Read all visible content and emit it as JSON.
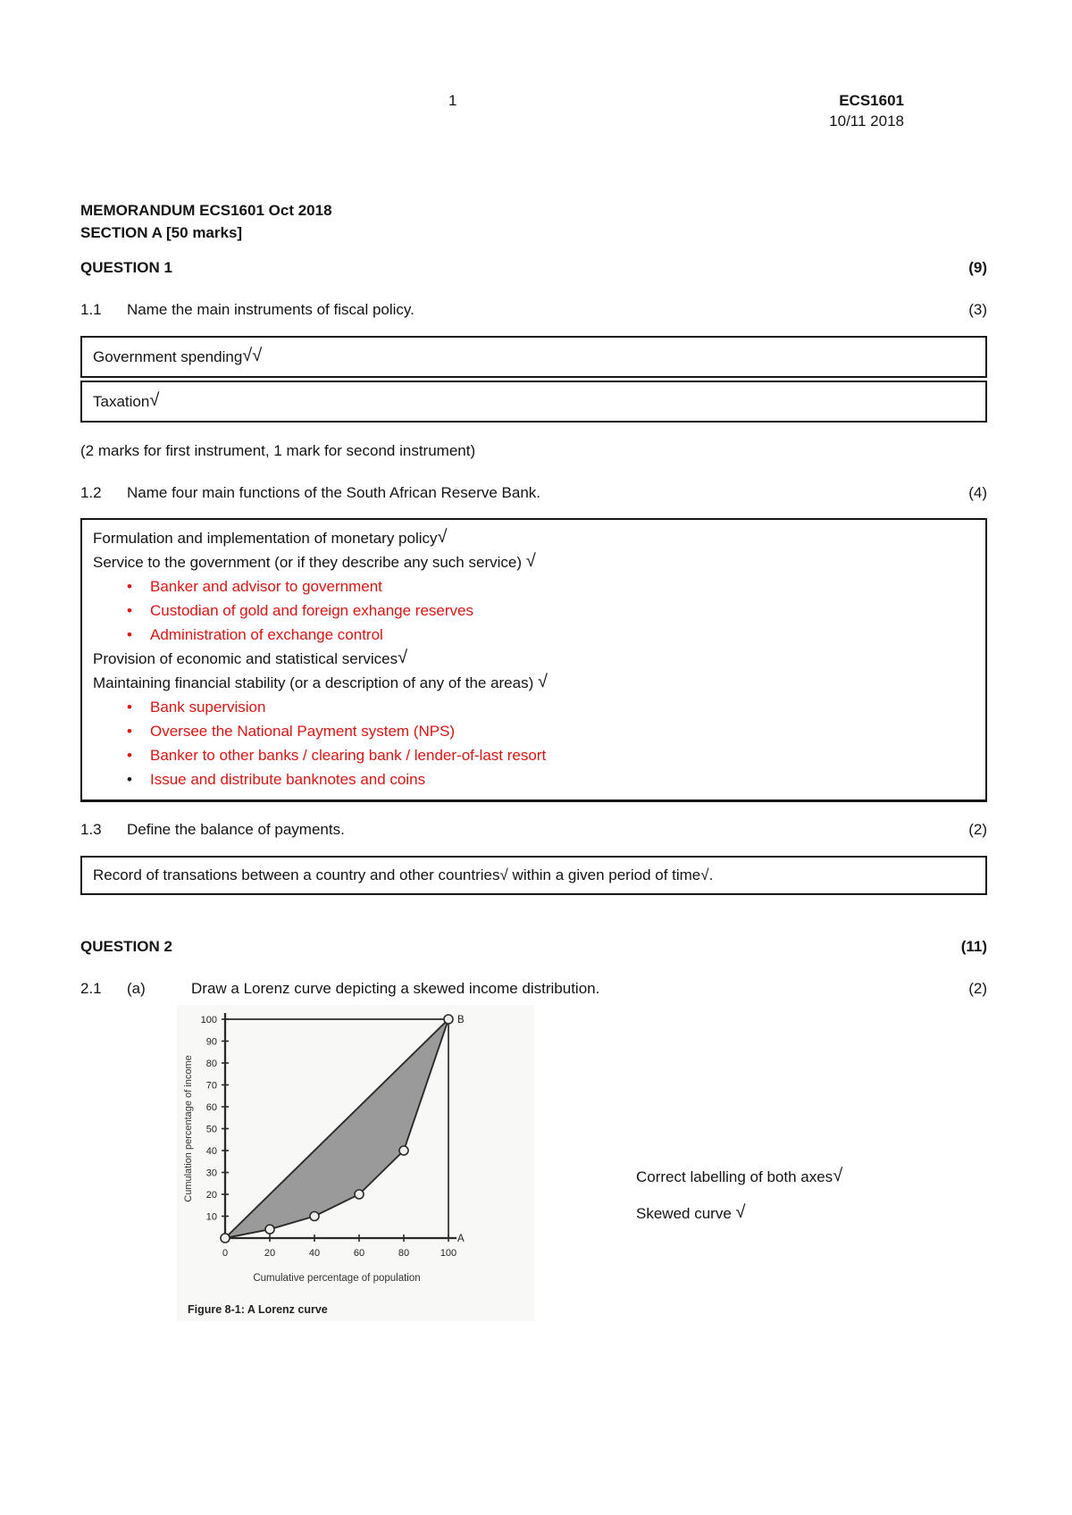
{
  "colors": {
    "accent_red": "#dc1412",
    "shade_gray": "#9a9a9a",
    "ink": "#141414"
  },
  "header": {
    "page_number": "1",
    "course_code": "ECS1601",
    "date": "10/11 2018"
  },
  "title": {
    "line1": "MEMORANDUM ECS1601 Oct 2018",
    "line2": "SECTION A [50 marks]"
  },
  "question1": {
    "heading": "QUESTION 1",
    "marks": "(9)",
    "q11": {
      "number": "1.1",
      "text": "Name the main instruments of fiscal policy.",
      "marks": "(3)",
      "answers": [
        {
          "text": "Government spending",
          "ticks": "√√"
        },
        {
          "text": "Taxation",
          "ticks": "√"
        }
      ],
      "note": "(2 marks for first instrument, 1 mark for second instrument)"
    },
    "q12": {
      "number": "1.2",
      "text": "Name four main functions of the South African Reserve Bank.",
      "marks": "(4)",
      "answer_lines": [
        {
          "type": "main",
          "text": "Formulation and implementation of monetary policy",
          "tick": "√"
        },
        {
          "type": "main",
          "text": "Service to the government (or if they describe any such service) ",
          "tick": "√"
        },
        {
          "type": "bullet",
          "text": "Banker and advisor to government"
        },
        {
          "type": "bullet",
          "text": "Custodian of gold and foreign exhange reserves"
        },
        {
          "type": "bullet",
          "text": "Administration of exchange control"
        },
        {
          "type": "main",
          "text": "Provision of economic and statistical services",
          "tick": "√"
        },
        {
          "type": "main",
          "text": "Maintaining financial stability (or a description of any of the areas) ",
          "tick": "√"
        },
        {
          "type": "bullet",
          "text": "Bank supervision"
        },
        {
          "type": "bullet",
          "text": "Oversee the National Payment system (NPS)"
        },
        {
          "type": "bullet",
          "text": "Banker to other banks / clearing bank / lender-of-last resort"
        },
        {
          "type": "bullet",
          "text": "Issue and distribute banknotes and coins",
          "marker": "black"
        }
      ]
    },
    "q13": {
      "number": "1.3",
      "text": "Define the balance of payments.",
      "marks": "(2)",
      "answer": "Record of transations between a country and other countries√ within a given period of time√."
    }
  },
  "question2": {
    "heading": "QUESTION 2",
    "marks": "(11)",
    "q21a": {
      "number": "2.1",
      "sub": "(a)",
      "text": "Draw a Lorenz curve depicting a skewed income distribution.",
      "marks": "(2)"
    },
    "annotations": [
      {
        "text": "Correct labelling of both axes",
        "tick": "√"
      },
      {
        "text": "Skewed curve ",
        "tick": "√"
      }
    ]
  },
  "figure": {
    "caption": "Figure 8-1: A Lorenz curve",
    "chart_data": {
      "type": "line",
      "x": [
        0,
        20,
        40,
        60,
        80,
        100
      ],
      "series": [
        {
          "name": "Line of perfect equality (0 to B)",
          "values": [
            0,
            20,
            40,
            60,
            80,
            100
          ]
        },
        {
          "name": "Lorenz curve (skewed distribution)",
          "values": [
            0,
            4,
            10,
            20,
            40,
            100
          ]
        }
      ],
      "xlabel": "Cumulative percentage of population",
      "ylabel": "Cumulation percentage of income",
      "xlim": [
        0,
        100
      ],
      "ylim": [
        0,
        100
      ],
      "x_ticks": [
        0,
        20,
        40,
        60,
        80,
        100
      ],
      "y_ticks": [
        10,
        20,
        30,
        40,
        50,
        60,
        70,
        80,
        90,
        100
      ],
      "point_labels": [
        {
          "label": "B",
          "x": 100,
          "y": 100
        },
        {
          "label": "A",
          "x": 100,
          "y": 0
        }
      ],
      "shaded_between": true,
      "fill_color": "#9a9a9a",
      "grid": false,
      "legend": "none"
    }
  }
}
